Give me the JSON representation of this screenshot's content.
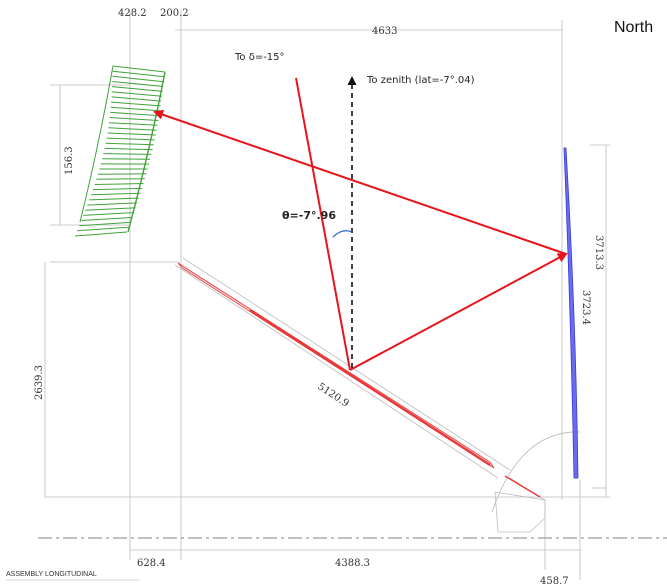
{
  "title": "North",
  "labels": {
    "to_delta": "To δ=-15°",
    "to_zenith": "To zenith (lat=-7°.04)",
    "theta": "θ=-7°.96",
    "assembly": "ASSEMBLY LONGITUDINAL"
  },
  "dimensions": {
    "top_left": "428.2",
    "top_mid": "200.2",
    "top_span": "4633",
    "left_feed": "156.3",
    "left_lower": "2639.3",
    "right_outer": "3713.3",
    "right_inner": "3723.4",
    "diag": "5120.9",
    "bottom_left": "628.4",
    "bottom_mid": "4388.3",
    "bottom_right": "458.7"
  },
  "colors": {
    "ray": "#e8141c",
    "primary_mirror": "#e83a3a",
    "secondary_mirror": "#4a4adf",
    "feed_array": "#3fa33a",
    "zenith": "#111111",
    "theta_arc": "#2a64c8",
    "construction": "#bdbdbd"
  }
}
